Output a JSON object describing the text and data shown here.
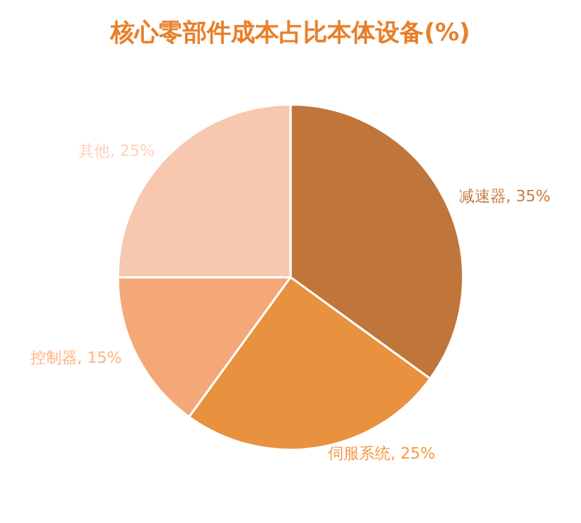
{
  "chart_data": {
    "type": "pie",
    "title": "核心零部件成本占比本体设备(%)",
    "categories": [
      "减速器",
      "伺服系统",
      "控制器",
      "其他"
    ],
    "values": [
      35,
      25,
      15,
      25
    ],
    "value_labels": [
      "35%",
      "25%",
      "15%",
      "25%"
    ],
    "colors": [
      "#c0753a",
      "#e8913f",
      "#f4a877",
      "#f8c7af"
    ],
    "legend": false
  }
}
